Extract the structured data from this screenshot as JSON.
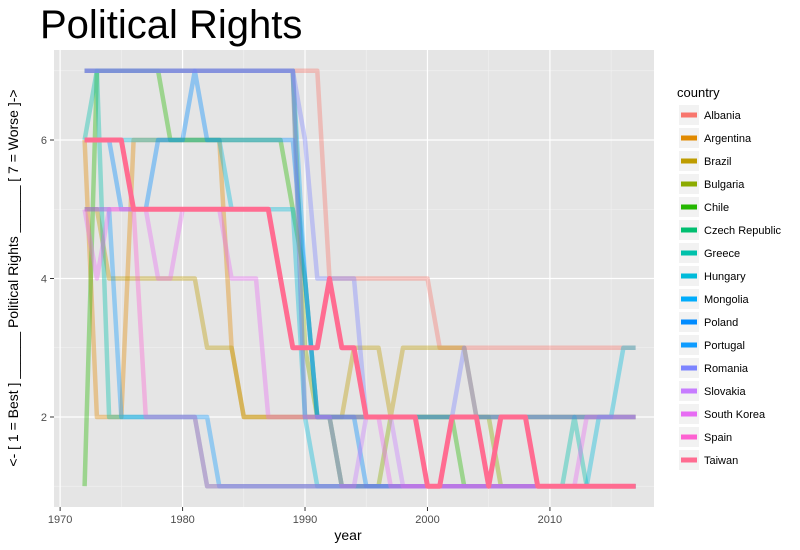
{
  "chart_data": {
    "type": "line",
    "title": "Political Rights",
    "xlabel": "year",
    "ylabel": "<- [ 1 = Best ] ______ Political Rights ______ [ 7 = Worse ]->",
    "xlim": [
      1969.5,
      2018.5
    ],
    "ylim": [
      0.7,
      7.3
    ],
    "x_ticks": [
      1970,
      1980,
      1990,
      2000,
      2010
    ],
    "y_ticks": [
      2,
      4,
      6
    ],
    "grid": true,
    "background": "#e5e5e5",
    "legend": {
      "title": "country",
      "placement": "right"
    },
    "years": [
      1972,
      2017
    ],
    "highlight": "Taiwan",
    "series": [
      {
        "name": "Albania",
        "color": "#F8766D",
        "values": [
          7,
          7,
          7,
          7,
          7,
          7,
          7,
          7,
          7,
          7,
          7,
          7,
          7,
          7,
          7,
          7,
          7,
          7,
          7,
          7,
          4,
          4,
          4,
          4,
          4,
          4,
          4,
          4,
          4,
          3,
          3,
          3,
          3,
          3,
          3,
          3,
          3,
          3,
          3,
          3,
          3,
          3,
          3,
          3,
          3,
          3
        ]
      },
      {
        "name": "Argentina",
        "color": "#E18A00",
        "values": [
          6,
          2,
          2,
          2,
          6,
          6,
          6,
          6,
          6,
          6,
          6,
          6,
          3,
          2,
          2,
          2,
          2,
          2,
          2,
          2,
          2,
          2,
          2,
          2,
          2,
          2,
          2,
          2,
          2,
          2,
          2,
          2,
          2,
          2,
          2,
          2,
          2,
          2,
          2,
          2,
          2,
          2,
          2,
          2,
          2,
          2
        ]
      },
      {
        "name": "Brazil",
        "color": "#BE9C00",
        "values": [
          5,
          5,
          4,
          4,
          4,
          4,
          4,
          4,
          4,
          4,
          3,
          3,
          3,
          2,
          2,
          2,
          2,
          2,
          2,
          2,
          2,
          2,
          3,
          3,
          3,
          2,
          3,
          3,
          3,
          3,
          3,
          3,
          2,
          2,
          2,
          2,
          2,
          2,
          2,
          2,
          2,
          2,
          2,
          2,
          2,
          2
        ]
      },
      {
        "name": "Bulgaria",
        "color": "#8CAB00",
        "values": [
          7,
          7,
          7,
          7,
          7,
          7,
          7,
          7,
          7,
          7,
          7,
          7,
          7,
          7,
          7,
          7,
          7,
          7,
          3,
          2,
          2,
          1,
          1,
          1,
          1,
          2,
          2,
          2,
          2,
          2,
          2,
          2,
          2,
          2,
          1,
          1,
          1,
          1,
          1,
          1,
          1,
          1,
          1,
          1,
          1,
          1
        ]
      },
      {
        "name": "Chile",
        "color": "#24B700",
        "values": [
          1,
          7,
          7,
          7,
          7,
          7,
          7,
          6,
          6,
          6,
          6,
          6,
          6,
          6,
          6,
          6,
          6,
          5,
          4,
          2,
          2,
          2,
          2,
          2,
          2,
          2,
          2,
          2,
          2,
          2,
          2,
          1,
          1,
          1,
          1,
          1,
          1,
          1,
          1,
          1,
          1,
          1,
          1,
          1,
          1,
          1
        ]
      },
      {
        "name": "Czech Republic",
        "color": "#00BE70",
        "values": [
          7,
          7,
          7,
          7,
          7,
          7,
          7,
          7,
          7,
          7,
          7,
          7,
          7,
          7,
          7,
          7,
          7,
          7,
          2,
          2,
          2,
          1,
          1,
          1,
          1,
          1,
          1,
          1,
          1,
          1,
          1,
          1,
          1,
          1,
          1,
          1,
          1,
          1,
          1,
          1,
          1,
          1,
          1,
          1,
          1,
          1
        ]
      },
      {
        "name": "Greece",
        "color": "#00C1AB",
        "values": [
          6,
          7,
          2,
          2,
          2,
          2,
          2,
          2,
          2,
          2,
          1,
          1,
          1,
          1,
          1,
          1,
          1,
          1,
          1,
          1,
          1,
          1,
          1,
          1,
          1,
          1,
          1,
          1,
          1,
          1,
          1,
          1,
          1,
          1,
          1,
          1,
          1,
          1,
          1,
          1,
          2,
          1,
          1,
          1,
          1,
          1
        ]
      },
      {
        "name": "Hungary",
        "color": "#00BBDA",
        "values": [
          6,
          6,
          6,
          6,
          6,
          6,
          6,
          6,
          6,
          6,
          6,
          6,
          5,
          5,
          5,
          5,
          5,
          5,
          2,
          1,
          1,
          1,
          1,
          1,
          1,
          1,
          1,
          1,
          1,
          1,
          1,
          1,
          1,
          1,
          1,
          1,
          1,
          1,
          1,
          1,
          1,
          1,
          2,
          2,
          3,
          3
        ]
      },
      {
        "name": "Mongolia",
        "color": "#00ACFC",
        "values": [
          7,
          7,
          7,
          7,
          7,
          7,
          7,
          7,
          7,
          7,
          7,
          7,
          7,
          7,
          7,
          7,
          7,
          7,
          4,
          2,
          2,
          2,
          2,
          2,
          2,
          2,
          2,
          2,
          2,
          2,
          2,
          2,
          2,
          2,
          2,
          2,
          2,
          2,
          2,
          2,
          2,
          2,
          2,
          2,
          2,
          2
        ]
      },
      {
        "name": "Poland",
        "color": "#008BFF",
        "values": [
          6,
          6,
          6,
          5,
          5,
          5,
          6,
          6,
          6,
          7,
          6,
          6,
          6,
          6,
          6,
          6,
          6,
          6,
          4,
          2,
          2,
          2,
          2,
          1,
          1,
          1,
          1,
          1,
          1,
          1,
          1,
          1,
          1,
          1,
          1,
          1,
          1,
          1,
          1,
          1,
          1,
          1,
          1,
          1,
          1,
          1
        ]
      },
      {
        "name": "Portugal",
        "color": "#0F9CFF",
        "values": [
          5,
          5,
          5,
          2,
          2,
          2,
          2,
          2,
          2,
          2,
          2,
          1,
          1,
          1,
          1,
          1,
          1,
          1,
          1,
          1,
          1,
          1,
          1,
          1,
          1,
          1,
          1,
          1,
          1,
          1,
          1,
          1,
          1,
          1,
          1,
          1,
          1,
          1,
          1,
          1,
          1,
          1,
          1,
          1,
          1,
          1
        ]
      },
      {
        "name": "Romania",
        "color": "#7C84FF",
        "values": [
          7,
          7,
          7,
          7,
          7,
          7,
          7,
          7,
          7,
          7,
          7,
          7,
          7,
          7,
          7,
          7,
          7,
          7,
          6,
          4,
          4,
          4,
          4,
          2,
          2,
          2,
          2,
          2,
          2,
          2,
          2,
          3,
          2,
          2,
          2,
          2,
          2,
          2,
          2,
          2,
          2,
          2,
          2,
          2,
          2,
          2
        ]
      },
      {
        "name": "Slovakia",
        "color": "#C77CFF",
        "values": [
          7,
          7,
          7,
          7,
          7,
          7,
          7,
          7,
          7,
          7,
          7,
          7,
          7,
          7,
          7,
          7,
          7,
          7,
          2,
          2,
          2,
          1,
          1,
          2,
          2,
          2,
          1,
          1,
          1,
          1,
          1,
          1,
          1,
          1,
          1,
          1,
          1,
          1,
          1,
          1,
          1,
          1,
          1,
          1,
          1,
          1
        ]
      },
      {
        "name": "South Korea",
        "color": "#E76BF3",
        "values": [
          5,
          4,
          5,
          5,
          5,
          5,
          4,
          4,
          5,
          5,
          5,
          5,
          4,
          4,
          4,
          2,
          2,
          2,
          2,
          2,
          2,
          2,
          2,
          2,
          2,
          1,
          1,
          1,
          1,
          1,
          1,
          1,
          1,
          1,
          1,
          1,
          1,
          1,
          1,
          1,
          1,
          2,
          2,
          2,
          2,
          2
        ]
      },
      {
        "name": "Spain",
        "color": "#FD61D1",
        "values": [
          5,
          5,
          5,
          5,
          5,
          2,
          2,
          2,
          2,
          2,
          1,
          1,
          1,
          1,
          1,
          1,
          1,
          1,
          1,
          1,
          1,
          1,
          1,
          1,
          1,
          1,
          1,
          1,
          1,
          1,
          1,
          1,
          1,
          1,
          1,
          1,
          1,
          1,
          1,
          1,
          1,
          1,
          1,
          1,
          1,
          1
        ]
      },
      {
        "name": "Taiwan",
        "color": "#FF6C91",
        "values": [
          6,
          6,
          6,
          6,
          5,
          5,
          5,
          5,
          5,
          5,
          5,
          5,
          5,
          5,
          5,
          5,
          4,
          3,
          3,
          3,
          4,
          3,
          3,
          2,
          2,
          2,
          2,
          2,
          1,
          1,
          2,
          2,
          2,
          1,
          2,
          2,
          2,
          1,
          1,
          1,
          1,
          1,
          1,
          1,
          1,
          1
        ]
      }
    ]
  }
}
